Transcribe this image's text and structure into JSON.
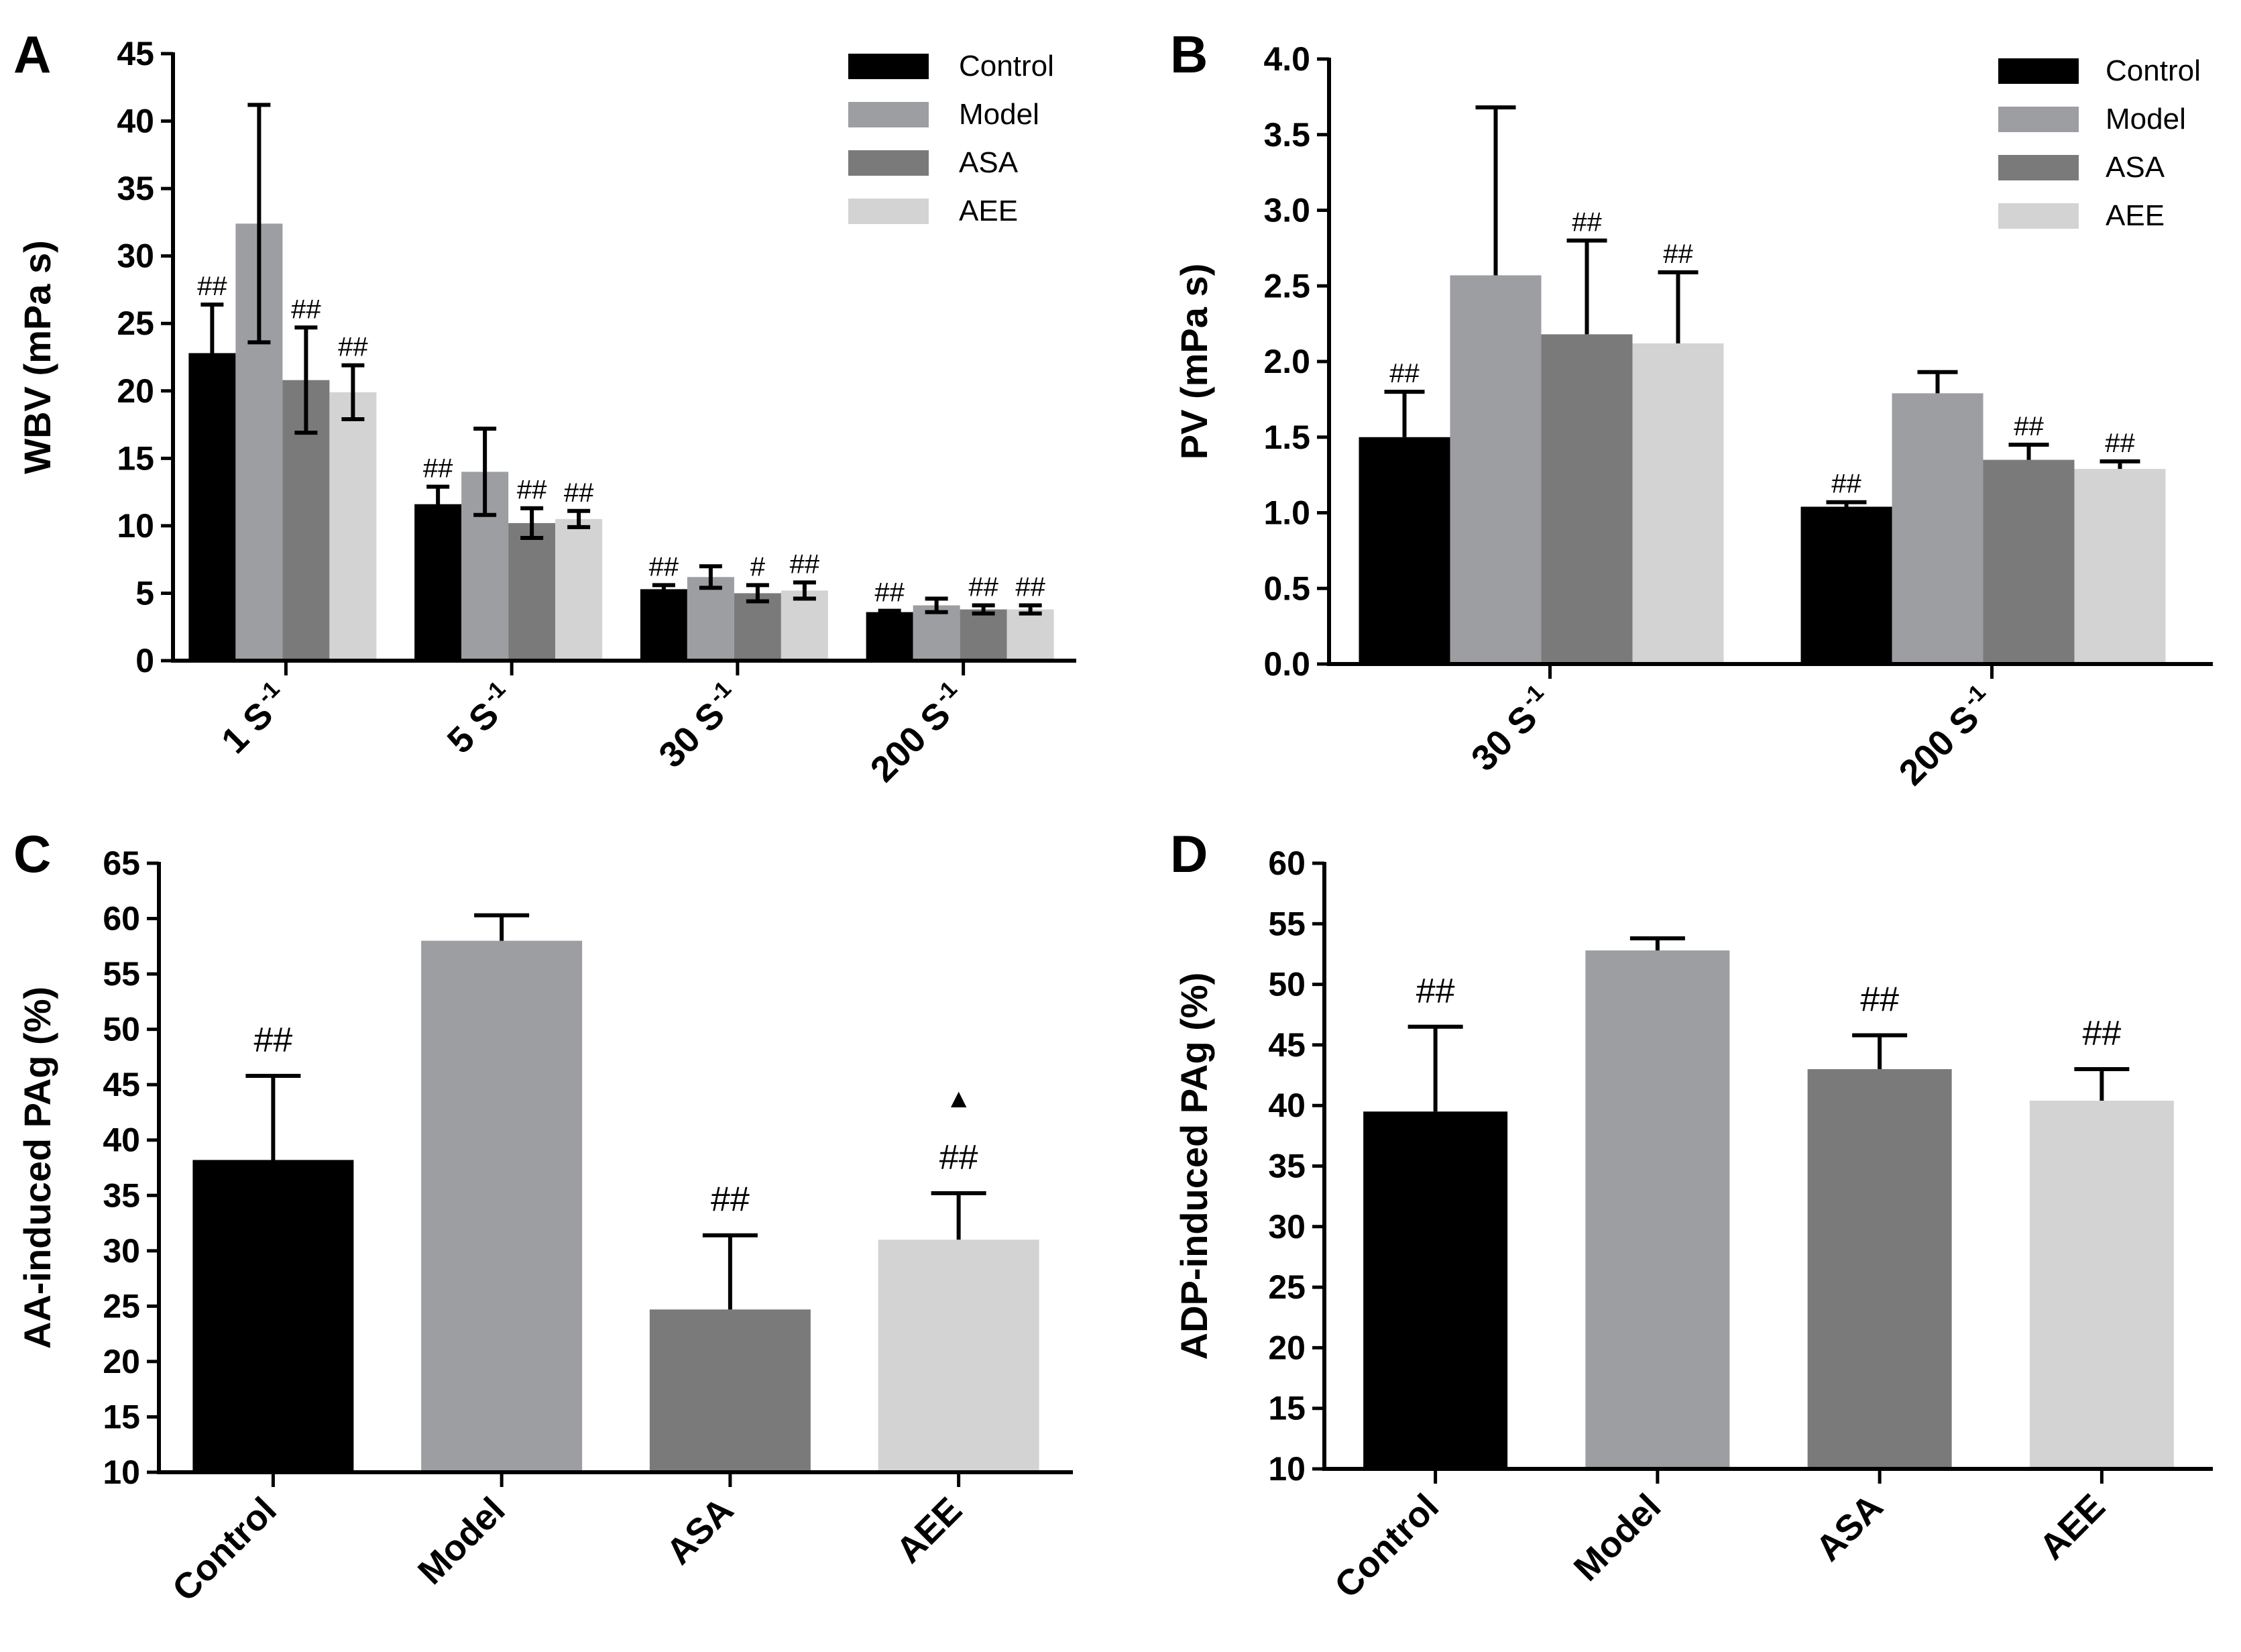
{
  "colors": {
    "Control": "#000000",
    "Model": "#9d9ea2",
    "ASA": "#7a7a7a",
    "AEE": "#d3d3d3"
  },
  "chart_data": [
    {
      "panel": "A",
      "type": "bar",
      "ylabel": "WBV (mPa s)",
      "ylim": [
        0,
        45
      ],
      "yticks": [
        0,
        5,
        10,
        15,
        20,
        25,
        30,
        35,
        40,
        45
      ],
      "categories": [
        "1 S",
        "5 S",
        "30 S",
        "200 S"
      ],
      "category_superscript": "-1",
      "legend": [
        "Control",
        "Model",
        "ASA",
        "AEE"
      ],
      "legend_position": "top-right",
      "series": [
        {
          "name": "Control",
          "values": [
            22.8,
            11.6,
            5.3,
            3.6
          ],
          "errors": [
            3.6,
            1.3,
            0.3,
            0.1
          ],
          "error_mode": "both",
          "annotations": [
            "##",
            "##",
            "##",
            "##"
          ]
        },
        {
          "name": "Model",
          "values": [
            32.4,
            14.0,
            6.2,
            4.1
          ],
          "errors": [
            8.8,
            3.2,
            0.8,
            0.5
          ],
          "error_mode": "both",
          "annotations": [
            "",
            "",
            "",
            ""
          ]
        },
        {
          "name": "ASA",
          "values": [
            20.8,
            10.2,
            5.0,
            3.8
          ],
          "errors": [
            3.9,
            1.1,
            0.6,
            0.3
          ],
          "error_mode": "both",
          "annotations": [
            "##",
            "##",
            "#",
            "##"
          ]
        },
        {
          "name": "AEE",
          "values": [
            19.9,
            10.5,
            5.2,
            3.8
          ],
          "errors": [
            2.0,
            0.6,
            0.6,
            0.3
          ],
          "error_mode": "both",
          "annotations": [
            "##",
            "##",
            "##",
            "##"
          ]
        }
      ]
    },
    {
      "panel": "B",
      "type": "bar",
      "ylabel": "PV (mPa s)",
      "ylim": [
        0,
        4.0
      ],
      "yticks": [
        0.0,
        0.5,
        1.0,
        1.5,
        2.0,
        2.5,
        3.0,
        3.5,
        4.0
      ],
      "tick_format": 1,
      "categories": [
        "30 S",
        "200 S"
      ],
      "category_superscript": "-1",
      "legend": [
        "Control",
        "Model",
        "ASA",
        "AEE"
      ],
      "legend_position": "top-right",
      "series": [
        {
          "name": "Control",
          "values": [
            1.5,
            1.04
          ],
          "errors": [
            0.3,
            0.03
          ],
          "error_mode": "up",
          "annotations": [
            "##",
            "##"
          ]
        },
        {
          "name": "Model",
          "values": [
            2.57,
            1.79
          ],
          "errors": [
            1.11,
            0.14
          ],
          "error_mode": "up",
          "annotations": [
            "",
            ""
          ]
        },
        {
          "name": "ASA",
          "values": [
            2.18,
            1.35
          ],
          "errors": [
            0.62,
            0.1
          ],
          "error_mode": "up",
          "annotations": [
            "##",
            "##"
          ]
        },
        {
          "name": "AEE",
          "values": [
            2.12,
            1.29
          ],
          "errors": [
            0.47,
            0.05
          ],
          "error_mode": "up",
          "annotations": [
            "##",
            "##"
          ]
        }
      ]
    },
    {
      "panel": "C",
      "type": "bar",
      "ylabel": "AA-induced PAg (%)",
      "ylim": [
        10,
        65
      ],
      "yticks": [
        10,
        15,
        20,
        25,
        30,
        35,
        40,
        45,
        50,
        55,
        60,
        65
      ],
      "categories": [
        "Control",
        "Model",
        "ASA",
        "AEE"
      ],
      "values": [
        38.2,
        58.0,
        24.7,
        31.0
      ],
      "errors": [
        7.6,
        2.3,
        6.7,
        4.2
      ],
      "error_mode": "up",
      "annotations": [
        "##",
        "",
        "##",
        "##"
      ],
      "extra_marker": {
        "category": "AEE",
        "symbol": "▲"
      }
    },
    {
      "panel": "D",
      "type": "bar",
      "ylabel": "ADP-induced PAg (%)",
      "ylim": [
        10,
        60
      ],
      "yticks": [
        10,
        15,
        20,
        25,
        30,
        35,
        40,
        45,
        50,
        55,
        60
      ],
      "categories": [
        "Control",
        "Model",
        "ASA",
        "AEE"
      ],
      "values": [
        39.5,
        52.8,
        43.0,
        40.4
      ],
      "errors": [
        7.0,
        1.0,
        2.8,
        2.6
      ],
      "error_mode": "up",
      "annotations": [
        "##",
        "",
        "##",
        "##"
      ]
    }
  ]
}
